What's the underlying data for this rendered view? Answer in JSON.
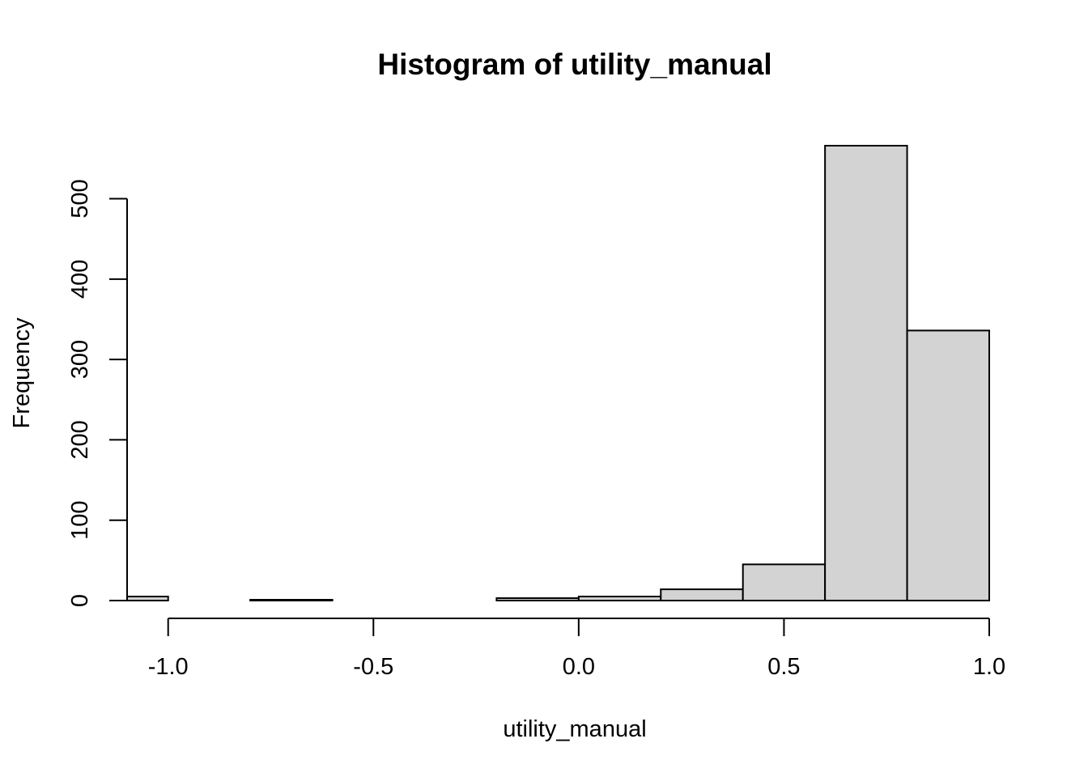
{
  "chart_data": {
    "type": "bar",
    "title": "Histogram of utility_manual",
    "xlabel": "utility_manual",
    "ylabel": "Frequency",
    "bin_edges": [
      -1.1,
      -1.0,
      -0.8,
      -0.6,
      -0.4,
      -0.2,
      0.0,
      0.2,
      0.4,
      0.6,
      0.8,
      1.0
    ],
    "values": [
      5,
      0,
      1,
      0,
      0,
      3,
      5,
      14,
      45,
      566,
      336
    ],
    "xlim": [
      -1.1,
      1.0
    ],
    "ylim": [
      0,
      566
    ],
    "x_ticks": [
      -1.0,
      -0.5,
      0.0,
      0.5,
      1.0
    ],
    "x_tick_labels": [
      "-1.0",
      "-0.5",
      "0.0",
      "0.5",
      "1.0"
    ],
    "y_ticks": [
      0,
      100,
      200,
      300,
      400,
      500
    ],
    "y_tick_labels": [
      "0",
      "100",
      "200",
      "300",
      "400",
      "500"
    ],
    "grid": false,
    "bar_color": "#d3d3d3"
  }
}
